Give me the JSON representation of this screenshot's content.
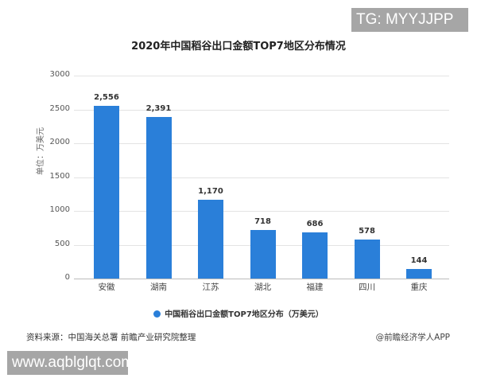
{
  "watermarks": {
    "top": "TG: MYYJJPP",
    "bottom": "www.aqblglqt.com"
  },
  "chart_data": {
    "type": "bar",
    "title": "2020年中国稻谷出口金额TOP7地区分布情况",
    "xlabel": "",
    "ylabel": "单位：万美元",
    "categories": [
      "安徽",
      "湖南",
      "江苏",
      "湖北",
      "福建",
      "四川",
      "重庆"
    ],
    "values": [
      2556,
      2391,
      1170,
      718,
      686,
      578,
      144
    ],
    "value_labels": [
      "2,556",
      "2,391",
      "1,170",
      "718",
      "686",
      "578",
      "144"
    ],
    "series": [
      {
        "name": "中国稻谷出口金额TOP7地区分布（万美元）",
        "values": [
          2556,
          2391,
          1170,
          718,
          686,
          578,
          144
        ],
        "color": "#2a7fd9"
      }
    ],
    "ylim": [
      0,
      3000
    ],
    "yticks": [
      "3000",
      "2500",
      "2000",
      "1500",
      "1000",
      "500",
      "0"
    ],
    "grid": true,
    "legend_position": "bottom"
  },
  "legend": {
    "label": "中国稻谷出口金额TOP7地区分布（万美元）"
  },
  "footer": {
    "source": "资料来源：中国海关总署 前瞻产业研究院整理",
    "credit": "@前瞻经济学人APP"
  }
}
